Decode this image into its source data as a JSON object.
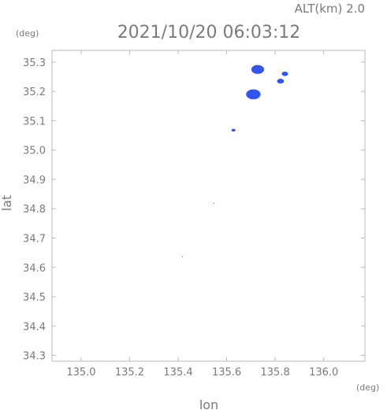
{
  "header": {
    "alt_label": "ALT(km) 2.0",
    "timestamp": "2021/10/20 06:03:12"
  },
  "axes": {
    "y_unit": "(deg)",
    "x_unit": "(deg)",
    "xlabel": "lon",
    "ylabel": "lat"
  },
  "chart_data": {
    "type": "scatter",
    "title": "2021/10/20 06:03:12",
    "xlabel": "lon",
    "ylabel": "lat",
    "xlim": [
      134.88,
      136.17
    ],
    "ylim": [
      34.28,
      35.34
    ],
    "x_ticks": [
      135.0,
      135.2,
      135.4,
      135.6,
      135.8,
      136.0
    ],
    "x_tick_labels": [
      "135.0",
      "135.2",
      "135.4",
      "135.6",
      "135.8",
      "136.0"
    ],
    "y_ticks": [
      34.3,
      34.4,
      34.5,
      34.6,
      34.7,
      34.8,
      34.9,
      35.0,
      35.1,
      35.2,
      35.3
    ],
    "y_tick_labels": [
      "34.3",
      "34.4",
      "34.5",
      "34.6",
      "34.7",
      "34.8",
      "34.9",
      "35.0",
      "35.1",
      "35.2",
      "35.3"
    ],
    "grid": false,
    "series": [
      {
        "color": "#3355ee",
        "points": [
          {
            "x": 135.728,
            "y": 35.275,
            "size": 2.2
          },
          {
            "x": 135.71,
            "y": 35.19,
            "size": 2.5
          },
          {
            "x": 135.822,
            "y": 35.235,
            "size": 1.2
          },
          {
            "x": 135.84,
            "y": 35.26,
            "size": 1.1
          },
          {
            "x": 135.628,
            "y": 35.068,
            "size": 0.7
          },
          {
            "x": 135.548,
            "y": 34.818,
            "size": 0.15
          },
          {
            "x": 135.418,
            "y": 34.637,
            "size": 0.2
          }
        ]
      }
    ]
  }
}
